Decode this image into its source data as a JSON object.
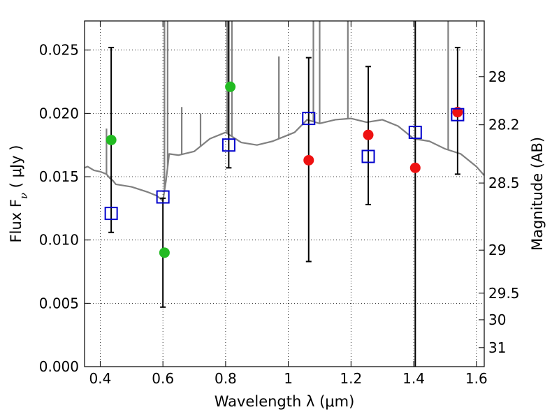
{
  "chart_data": {
    "type": "scatter",
    "xlabel": "Wavelength  λ (μm)",
    "ylabel": "Flux  F",
    "ylabel_sub": "ν",
    "ylabel_unit": "  ( μJy )",
    "ylabel_right": "Magnitude (AB)",
    "xlim": [
      0.35,
      1.625
    ],
    "ylim": [
      0,
      0.0273
    ],
    "grid": true,
    "x_ticks": [
      0.4,
      0.6,
      0.8,
      1.0,
      1.2,
      1.4,
      1.6
    ],
    "x_tick_labels": [
      "0.4",
      "0.6",
      "0.8",
      "1",
      "1.2",
      "1.4",
      "1.6"
    ],
    "y_ticks": [
      0.0,
      0.005,
      0.01,
      0.015,
      0.02,
      0.025
    ],
    "y_tick_labels": [
      "0.000",
      "0.005",
      "0.010",
      "0.015",
      "0.020",
      "0.025"
    ],
    "right_ticks": [
      {
        "flux": 0.0229,
        "label": "28"
      },
      {
        "flux": 0.0191,
        "label": "28.2"
      },
      {
        "flux": 0.0145,
        "label": "28.5"
      },
      {
        "flux": 0.0092,
        "label": "29"
      },
      {
        "flux": 0.0058,
        "label": "29.5"
      },
      {
        "flux": 0.0037,
        "label": "30"
      },
      {
        "flux": 0.0015,
        "label": "31"
      }
    ],
    "series": [
      {
        "marker": "green-circle",
        "color": "#22bb22",
        "x": [
          0.435,
          0.605,
          0.815
        ],
        "y": [
          0.0179,
          0.009,
          0.0221
        ]
      },
      {
        "marker": "red-circle",
        "color": "#ee1111",
        "x": [
          1.065,
          1.255,
          1.405,
          1.54
        ],
        "y": [
          0.0163,
          0.0183,
          0.0157,
          0.0201
        ]
      },
      {
        "marker": "blue-open-square",
        "color": "#0000cc",
        "x": [
          0.435,
          0.6,
          0.81,
          1.065,
          1.255,
          1.405,
          1.54
        ],
        "y": [
          0.0121,
          0.0134,
          0.0175,
          0.0196,
          0.0166,
          0.0185,
          0.0199
        ],
        "y_low": [
          0.0106,
          0.0047,
          0.0157,
          0.0083,
          0.0128,
          0.0,
          0.0152
        ],
        "y_high": [
          0.0252,
          0.0133,
          0.0273,
          0.0244,
          0.0237,
          0.0273,
          0.0252
        ]
      },
      {
        "marker": "model-spectrum",
        "color": "#808080",
        "x": [
          0.35,
          0.36,
          0.38,
          0.4,
          0.42,
          0.43,
          0.44,
          0.45,
          0.5,
          0.55,
          0.58,
          0.6,
          0.61,
          0.62,
          0.65,
          0.7,
          0.75,
          0.8,
          0.85,
          0.9,
          0.95,
          1.0,
          1.02,
          1.06,
          1.1,
          1.15,
          1.2,
          1.25,
          1.3,
          1.35,
          1.4,
          1.45,
          1.5,
          1.55,
          1.6,
          1.625
        ],
        "y": [
          0.0157,
          0.0158,
          0.0155,
          0.0154,
          0.0152,
          0.0149,
          0.0147,
          0.0144,
          0.0142,
          0.0138,
          0.0135,
          0.0131,
          0.0147,
          0.0168,
          0.0167,
          0.017,
          0.018,
          0.0185,
          0.0177,
          0.0175,
          0.0178,
          0.0183,
          0.0185,
          0.0195,
          0.0192,
          0.0195,
          0.0196,
          0.0193,
          0.0195,
          0.019,
          0.018,
          0.0178,
          0.0172,
          0.0168,
          0.0158,
          0.0151
        ]
      }
    ]
  }
}
